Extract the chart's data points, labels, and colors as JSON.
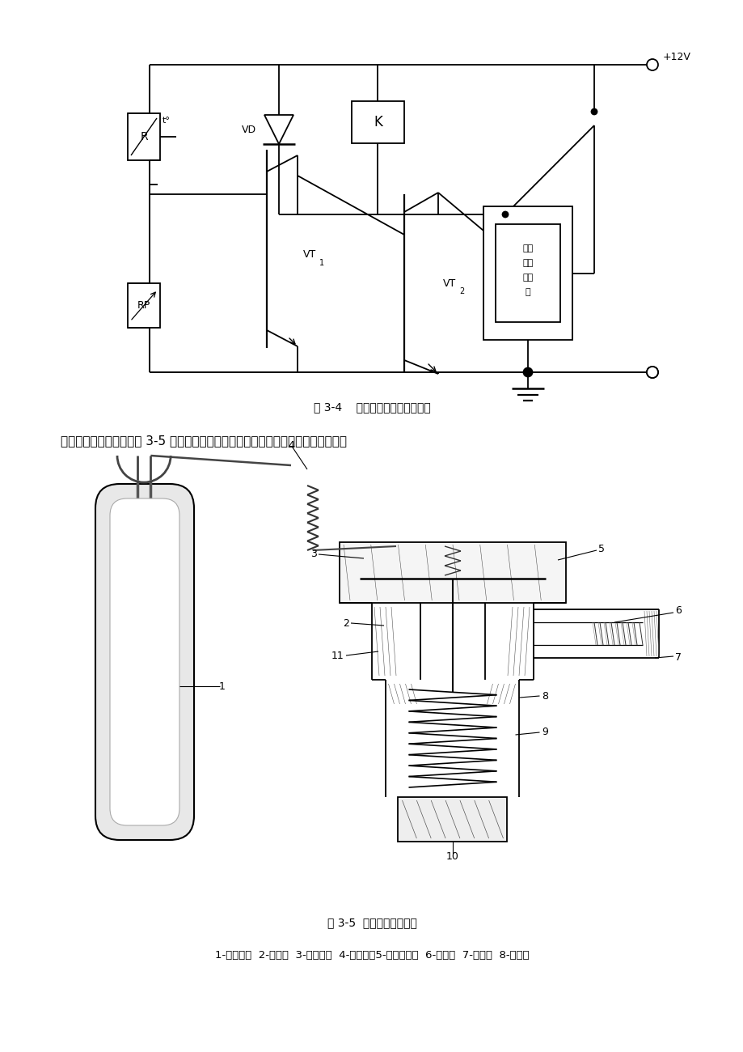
{
  "bg_color": "#ffffff",
  "fig3_4_caption": "图 3-4    热敏式温度控制器原理图",
  "fig3_5_caption": "图 3-5  内平衡膨胀阀结构",
  "text_paragraph": "内平衡膨胀阀的结构如图 3-5 所示。它由调节机构、感温系统和节流口几部分组成。",
  "legend_text": "1-感温包；  2-顶杆；  3-支承片；  4-毛细管；5-金属膜片；  6-滤网；  7-孔口；  8-阀心：",
  "plus12v": "+12V",
  "vd_label": "VD",
  "k_label": "K",
  "vt1_label": "VT",
  "vt2_label": "VT",
  "r_label": "R",
  "rp_label": "RP",
  "dianci_line1": "电磁",
  "dianci_line2": "离合",
  "dianci_line3": "器线",
  "dianci_line4": "圈",
  "t_label": "t°"
}
